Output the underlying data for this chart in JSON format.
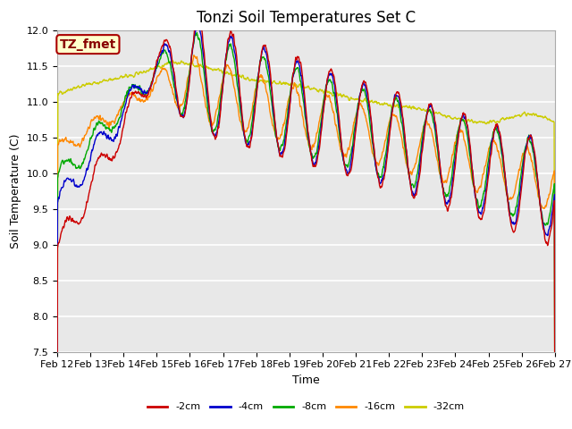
{
  "title": "Tonzi Soil Temperatures Set C",
  "xlabel": "Time",
  "ylabel": "Soil Temperature (C)",
  "annotation": "TZ_fmet",
  "ylim": [
    7.5,
    12.0
  ],
  "yticks": [
    7.5,
    8.0,
    8.5,
    9.0,
    9.5,
    10.0,
    10.5,
    11.0,
    11.5,
    12.0
  ],
  "xtick_labels": [
    "Feb 12",
    "Feb 13",
    "Feb 14",
    "Feb 15",
    "Feb 16",
    "Feb 17",
    "Feb 18",
    "Feb 19",
    "Feb 20",
    "Feb 21",
    "Feb 22",
    "Feb 23",
    "Feb 24",
    "Feb 25",
    "Feb 26",
    "Feb 27"
  ],
  "colors": {
    "-2cm": "#cc0000",
    "-4cm": "#0000cc",
    "-8cm": "#00aa00",
    "-16cm": "#ff8800",
    "-32cm": "#cccc00"
  },
  "bg_color": "#ffffff",
  "plot_bg": "#e8e8e8",
  "annotation_bg": "#ffffcc",
  "annotation_border": "#aa0000",
  "annotation_text_color": "#880000",
  "title_fontsize": 12,
  "label_fontsize": 9,
  "tick_fontsize": 8,
  "n_points": 1440,
  "figsize": [
    6.4,
    4.8
  ],
  "dpi": 100
}
